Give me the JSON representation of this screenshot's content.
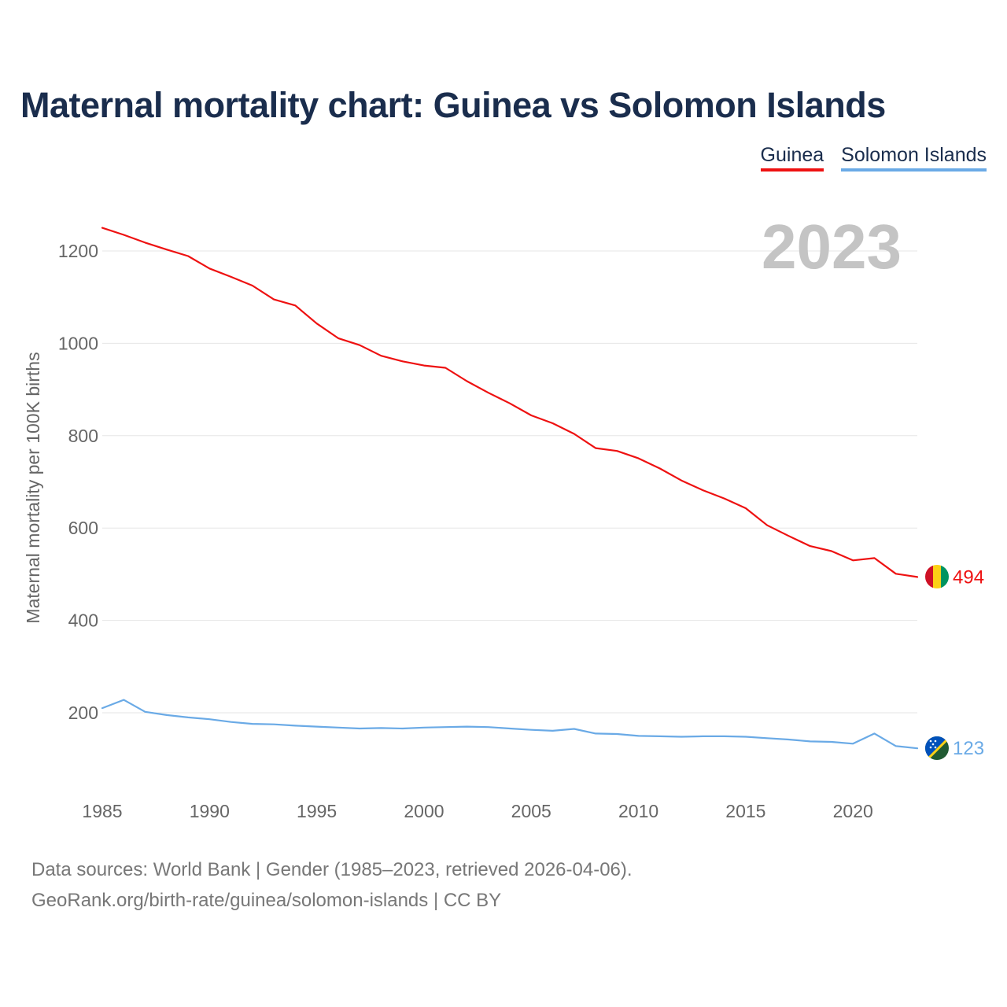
{
  "title": "Maternal mortality chart: Guinea vs Solomon Islands",
  "legend": [
    {
      "name": "Guinea",
      "color": "#ee1111"
    },
    {
      "name": "Solomon Islands",
      "color": "#6aaae6"
    }
  ],
  "year_label": "2023",
  "chart_data": {
    "type": "line",
    "title": "Maternal mortality chart: Guinea vs Solomon Islands",
    "xlabel": "",
    "ylabel": "Maternal mortality per 100K births",
    "xlim": [
      1985,
      2023
    ],
    "ylim": [
      80,
      1290
    ],
    "yticks": [
      200,
      400,
      600,
      800,
      1000,
      1200
    ],
    "xticks": [
      1985,
      1990,
      1995,
      2000,
      2005,
      2010,
      2015,
      2020
    ],
    "grid": true,
    "x": [
      1985,
      1986,
      1987,
      1988,
      1989,
      1990,
      1991,
      1992,
      1993,
      1994,
      1995,
      1996,
      1997,
      1998,
      1999,
      2000,
      2001,
      2002,
      2003,
      2004,
      2005,
      2006,
      2007,
      2008,
      2009,
      2010,
      2011,
      2012,
      2013,
      2014,
      2015,
      2016,
      2017,
      2018,
      2019,
      2020,
      2021,
      2022,
      2023
    ],
    "series": [
      {
        "name": "Guinea",
        "color": "#ee1111",
        "end_label": "494",
        "values": [
          1250,
          1235,
          1218,
          1203,
          1189,
          1162,
          1144,
          1125,
          1095,
          1082,
          1043,
          1011,
          996,
          973,
          961,
          952,
          947,
          918,
          893,
          870,
          844,
          827,
          804,
          773,
          767,
          751,
          729,
          703,
          682,
          664,
          643,
          606,
          583,
          561,
          550,
          530,
          535,
          501,
          494
        ]
      },
      {
        "name": "Solomon Islands",
        "color": "#6aaae6",
        "end_label": "123",
        "values": [
          210,
          228,
          202,
          195,
          190,
          186,
          180,
          176,
          175,
          172,
          170,
          168,
          166,
          167,
          166,
          168,
          169,
          170,
          169,
          166,
          163,
          161,
          165,
          155,
          154,
          150,
          149,
          148,
          149,
          149,
          148,
          145,
          142,
          138,
          137,
          133,
          155,
          128,
          123
        ]
      }
    ]
  },
  "footer": {
    "line1": "Data sources: World Bank | Gender (1985–2023, retrieved 2026-04-06).",
    "line2": "GeoRank.org/birth-rate/guinea/solomon-islands | CC BY"
  }
}
